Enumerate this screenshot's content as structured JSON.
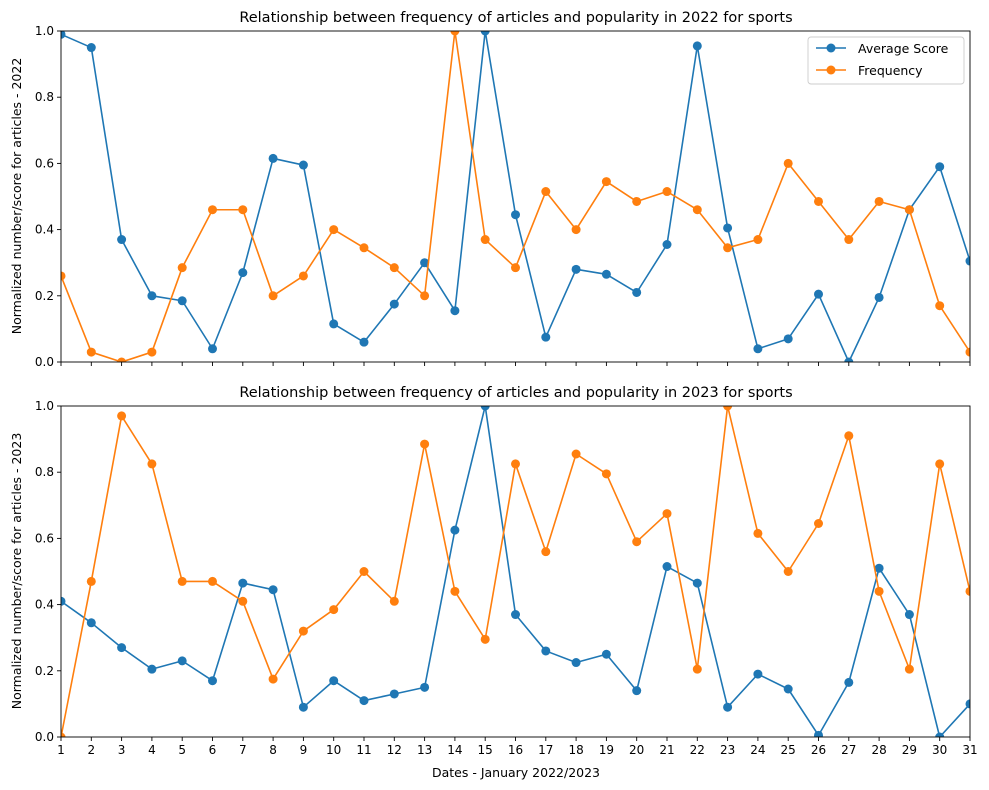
{
  "chart_data": [
    {
      "type": "line",
      "title": "Relationship between frequency of articles and popularity in 2022 for sports",
      "xlabel": "",
      "ylabel": "Normalized number/score for articles - 2022",
      "xlim": [
        1,
        31
      ],
      "ylim": [
        0,
        1
      ],
      "x": [
        1,
        2,
        3,
        4,
        5,
        6,
        7,
        8,
        9,
        10,
        11,
        12,
        13,
        14,
        15,
        16,
        17,
        18,
        19,
        20,
        21,
        22,
        23,
        24,
        25,
        26,
        27,
        28,
        29,
        30,
        31
      ],
      "xtick_labels_visible": false,
      "yticks": [
        "0.0",
        "0.2",
        "0.4",
        "0.6",
        "0.8",
        "1.0"
      ],
      "legend": "top-right",
      "series": [
        {
          "name": "Average Score",
          "color": "#1f77b4",
          "values": [
            0.99,
            0.95,
            0.37,
            0.2,
            0.185,
            0.04,
            0.27,
            0.615,
            0.595,
            0.115,
            0.06,
            0.175,
            0.3,
            0.155,
            1.0,
            0.445,
            0.075,
            0.28,
            0.265,
            0.21,
            0.355,
            0.955,
            0.405,
            0.04,
            0.07,
            0.205,
            0.0,
            0.195,
            0.46,
            0.59,
            0.305
          ]
        },
        {
          "name": "Frequency",
          "color": "#ff7f0e",
          "values": [
            0.26,
            0.03,
            0.0,
            0.03,
            0.285,
            0.46,
            0.46,
            0.2,
            0.26,
            0.4,
            0.345,
            0.285,
            0.2,
            1.0,
            0.37,
            0.285,
            0.515,
            0.4,
            0.545,
            0.485,
            0.515,
            0.46,
            0.345,
            0.37,
            0.6,
            0.485,
            0.37,
            0.485,
            0.46,
            0.17,
            0.03
          ]
        }
      ]
    },
    {
      "type": "line",
      "title": "Relationship between frequency of articles and popularity in 2023 for sports",
      "xlabel": "Dates - January 2022/2023",
      "ylabel": "Normalized number/score for articles - 2023",
      "xlim": [
        1,
        31
      ],
      "ylim": [
        0,
        1
      ],
      "x": [
        1,
        2,
        3,
        4,
        5,
        6,
        7,
        8,
        9,
        10,
        11,
        12,
        13,
        14,
        15,
        16,
        17,
        18,
        19,
        20,
        21,
        22,
        23,
        24,
        25,
        26,
        27,
        28,
        29,
        30,
        31
      ],
      "xticks": [
        "1",
        "2",
        "3",
        "4",
        "5",
        "6",
        "7",
        "8",
        "9",
        "10",
        "11",
        "12",
        "13",
        "14",
        "15",
        "16",
        "17",
        "18",
        "19",
        "20",
        "21",
        "22",
        "23",
        "24",
        "25",
        "26",
        "27",
        "28",
        "29",
        "30",
        "31"
      ],
      "yticks": [
        "0.0",
        "0.2",
        "0.4",
        "0.6",
        "0.8",
        "1.0"
      ],
      "series": [
        {
          "name": "Average Score",
          "color": "#1f77b4",
          "values": [
            0.41,
            0.345,
            0.27,
            0.205,
            0.23,
            0.17,
            0.465,
            0.445,
            0.09,
            0.17,
            0.11,
            0.13,
            0.15,
            0.625,
            1.0,
            0.37,
            0.26,
            0.225,
            0.25,
            0.14,
            0.515,
            0.465,
            0.09,
            0.19,
            0.145,
            0.005,
            0.165,
            0.51,
            0.37,
            0.0,
            0.1
          ]
        },
        {
          "name": "Frequency",
          "color": "#ff7f0e",
          "values": [
            0.0,
            0.47,
            0.97,
            0.825,
            0.47,
            0.47,
            0.41,
            0.175,
            0.32,
            0.385,
            0.5,
            0.41,
            0.885,
            0.44,
            0.295,
            0.825,
            0.56,
            0.855,
            0.795,
            0.59,
            0.675,
            0.205,
            1.0,
            0.615,
            0.5,
            0.645,
            0.91,
            0.44,
            0.205,
            0.825,
            0.44
          ]
        }
      ]
    }
  ]
}
